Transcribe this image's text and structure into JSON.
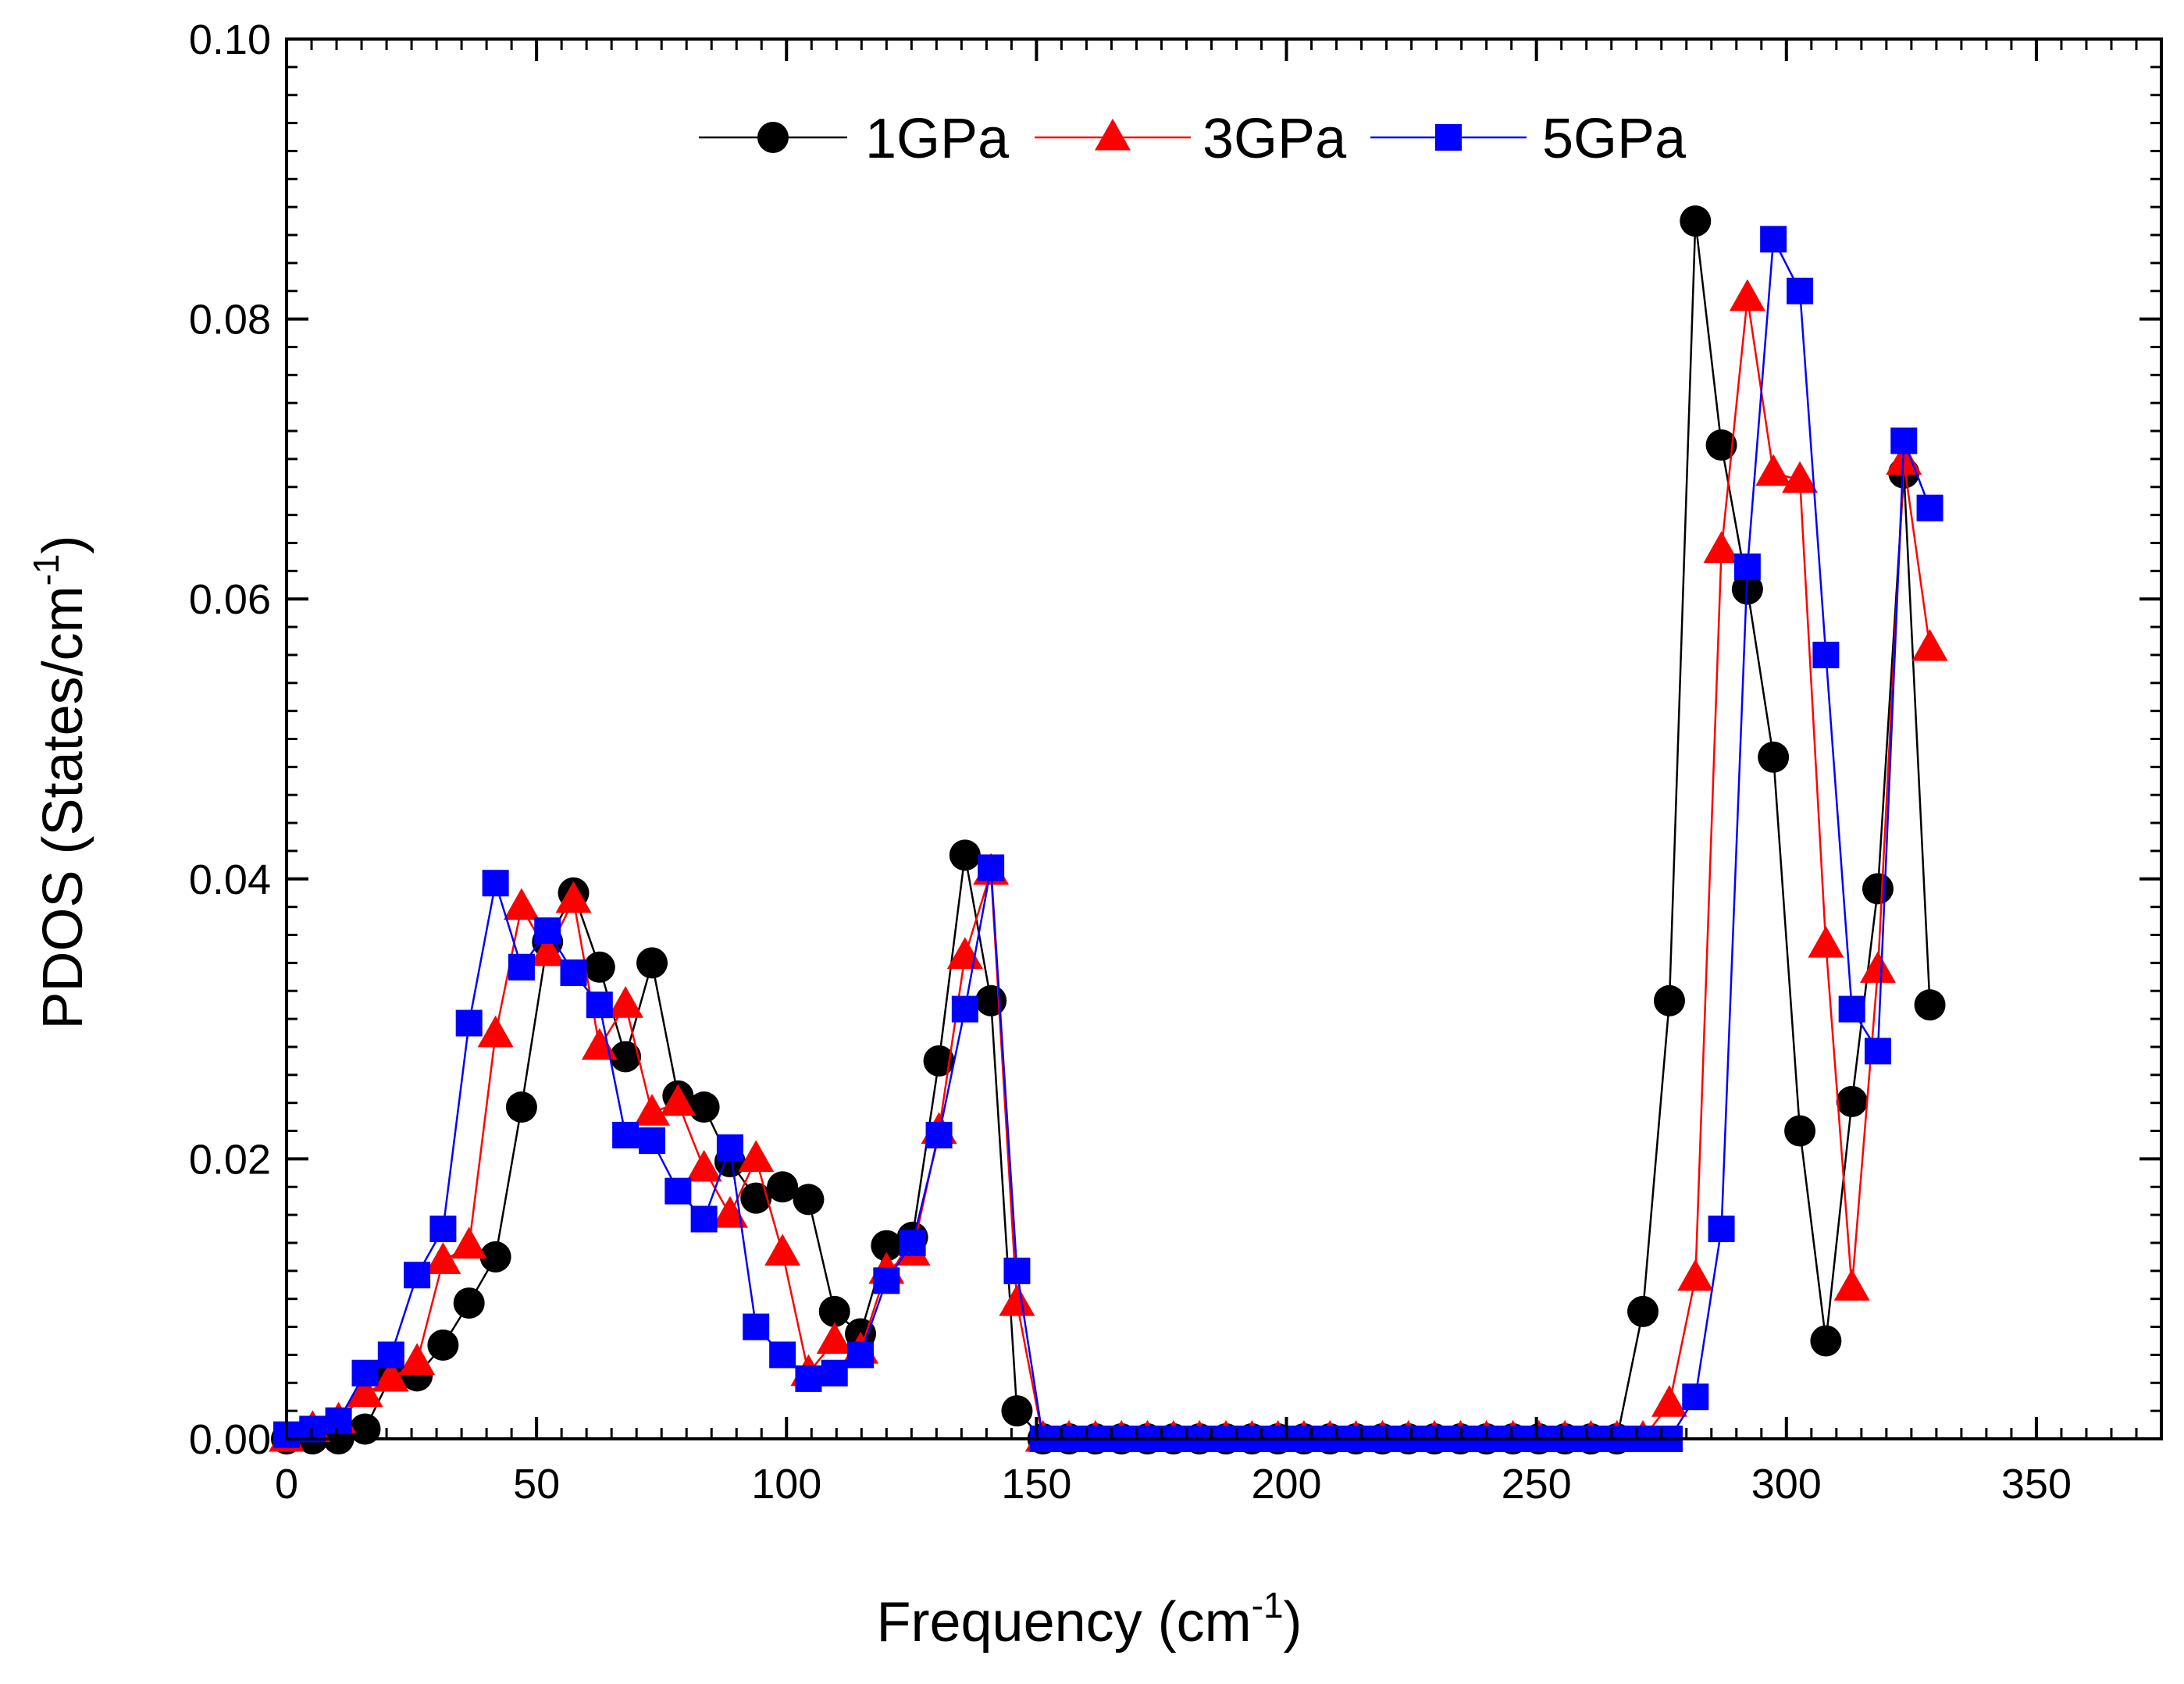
{
  "chart_data": {
    "type": "line",
    "title": "",
    "xlabel": "Frequency (cm",
    "xlabel_sup": "-1",
    "xlabel_end": ")",
    "ylabel": "PDOS (States/cm",
    "ylabel_sup": "-1",
    "ylabel_end": ")",
    "xlim": [
      0,
      375
    ],
    "ylim": [
      0,
      0.1
    ],
    "xticks": [
      0,
      50,
      100,
      150,
      200,
      250,
      300,
      350
    ],
    "xtick_labels": [
      "0",
      "50",
      "100",
      "150",
      "200",
      "250",
      "300",
      "350"
    ],
    "yticks": [
      0,
      0.02,
      0.04,
      0.06,
      0.08,
      0.1
    ],
    "ytick_labels": [
      "0.00",
      "0.02",
      "0.04",
      "0.06",
      "0.08",
      "0.10"
    ],
    "grid": false,
    "legend_position": "top",
    "series": [
      {
        "name": "1GPa",
        "color": "#000000",
        "marker": "circle",
        "x": [
          0,
          5.2,
          10.4,
          15.7,
          20.9,
          26.1,
          31.3,
          36.5,
          41.8,
          47,
          52.2,
          57.4,
          62.6,
          67.8,
          73.1,
          78.3,
          83.5,
          88.7,
          93.9,
          99.2,
          104.4,
          109.6,
          114.8,
          120,
          125.2,
          130.5,
          135.7,
          140.9,
          146.1,
          151.3,
          156.5,
          161.8,
          167,
          172.2,
          177.4,
          182.6,
          187.9,
          193.1,
          198.3,
          203.5,
          208.7,
          213.9,
          219.2,
          224.4,
          229.6,
          234.8,
          240,
          245.3,
          250.5,
          255.7,
          260.9,
          266.1,
          271.3,
          276.6,
          281.8,
          287,
          292.2,
          297.4,
          302.7,
          307.9,
          313.1,
          318.3,
          323.5,
          328.7
        ],
        "y": [
          0,
          0,
          0,
          0.0007,
          0.0045,
          0.0045,
          0.0067,
          0.0097,
          0.013,
          0.0237,
          0.0355,
          0.039,
          0.0337,
          0.0273,
          0.034,
          0.0245,
          0.0237,
          0.0198,
          0.0172,
          0.018,
          0.0171,
          0.0091,
          0.0075,
          0.0138,
          0.0144,
          0.027,
          0.0417,
          0.0313,
          0.002,
          0,
          0,
          0,
          0,
          0,
          0,
          0,
          0,
          0,
          0,
          0,
          0,
          0,
          0,
          0,
          0,
          0,
          0,
          0,
          0,
          0,
          0,
          0,
          0.0091,
          0.0313,
          0.087,
          0.071,
          0.0607,
          0.0487,
          0.022,
          0.007,
          0.0241,
          0.0393,
          0.069,
          0.031
        ]
      },
      {
        "name": "3GPa",
        "color": "#ff0000",
        "marker": "triangle",
        "x": [
          0,
          5.2,
          10.4,
          15.7,
          20.9,
          26.1,
          31.3,
          36.5,
          41.8,
          47,
          52.2,
          57.4,
          62.6,
          67.8,
          73.1,
          78.3,
          83.5,
          88.7,
          93.9,
          99.2,
          104.4,
          109.6,
          114.8,
          120,
          125.2,
          130.5,
          135.7,
          140.9,
          146.1,
          151.3,
          156.5,
          161.8,
          167,
          172.2,
          177.4,
          182.6,
          187.9,
          193.1,
          198.3,
          203.5,
          208.7,
          213.9,
          219.2,
          224.4,
          229.6,
          234.8,
          240,
          245.3,
          250.5,
          255.7,
          260.9,
          266.1,
          271.3,
          276.6,
          281.8,
          287,
          292.2,
          297.4,
          302.7,
          307.9,
          313.1,
          318.3,
          323.5,
          328.7
        ],
        "y": [
          0,
          0.0007,
          0.0013,
          0.0032,
          0.0043,
          0.0055,
          0.0127,
          0.0138,
          0.0289,
          0.038,
          0.0347,
          0.0385,
          0.028,
          0.031,
          0.0233,
          0.024,
          0.0193,
          0.016,
          0.02,
          0.0133,
          0.0047,
          0.007,
          0.0063,
          0.012,
          0.0133,
          0.022,
          0.0345,
          0.0405,
          0.0097,
          0,
          0,
          0,
          0,
          0,
          0,
          0,
          0,
          0,
          0,
          0,
          0,
          0,
          0,
          0,
          0,
          0,
          0,
          0,
          0,
          0,
          0,
          0,
          0,
          0.0025,
          0.0115,
          0.0635,
          0.0815,
          0.069,
          0.0685,
          0.0353,
          0.0108,
          0.0335,
          0.0698,
          0.0565
        ]
      },
      {
        "name": "5GPa",
        "color": "#0000ff",
        "marker": "square",
        "x": [
          0,
          5.2,
          10.4,
          15.7,
          20.9,
          26.1,
          31.3,
          36.5,
          41.8,
          47,
          52.2,
          57.4,
          62.6,
          67.8,
          73.1,
          78.3,
          83.5,
          88.7,
          93.9,
          99.2,
          104.4,
          109.6,
          114.8,
          120,
          125.2,
          130.5,
          135.7,
          140.9,
          146.1,
          151.3,
          156.5,
          161.8,
          167,
          172.2,
          177.4,
          182.6,
          187.9,
          193.1,
          198.3,
          203.5,
          208.7,
          213.9,
          219.2,
          224.4,
          229.6,
          234.8,
          240,
          245.3,
          250.5,
          255.7,
          260.9,
          266.1,
          271.3,
          276.6,
          281.8,
          287,
          292.2,
          297.4,
          302.7,
          307.9,
          313.1,
          318.3,
          323.5,
          328.7
        ],
        "y": [
          0.0003,
          0.0007,
          0.0013,
          0.0047,
          0.006,
          0.0117,
          0.015,
          0.0297,
          0.0397,
          0.0337,
          0.0363,
          0.0333,
          0.031,
          0.0217,
          0.0213,
          0.0177,
          0.0157,
          0.0208,
          0.008,
          0.006,
          0.0043,
          0.0047,
          0.006,
          0.0113,
          0.014,
          0.0217,
          0.0307,
          0.0408,
          0.012,
          0,
          0,
          0,
          0,
          0,
          0,
          0,
          0,
          0,
          0,
          0,
          0,
          0,
          0,
          0,
          0,
          0,
          0,
          0,
          0,
          0,
          0,
          0,
          0,
          0,
          0.003,
          0.015,
          0.0623,
          0.0857,
          0.082,
          0.056,
          0.0307,
          0.0277,
          0.0713,
          0.0665
        ]
      }
    ]
  }
}
